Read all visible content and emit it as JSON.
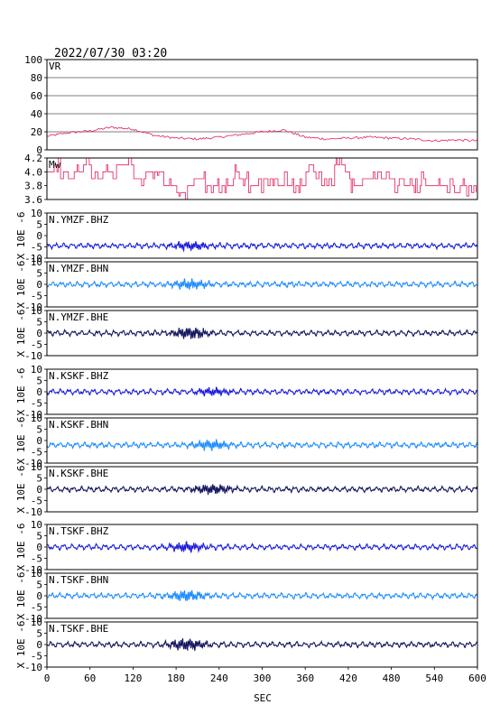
{
  "header": {
    "datetime": "2022/07/30 03:20"
  },
  "colors": {
    "frame": "#000000",
    "vr_line": "#e0205a",
    "mw_line": "#e0205a",
    "bhz": "#1a1adc",
    "bhn": "#1e8cff",
    "bhe": "#141460",
    "grid": "#000000"
  },
  "chart_data": {
    "x_axis": {
      "label": "SEC",
      "ticks": [
        0,
        60,
        120,
        180,
        240,
        300,
        360,
        420,
        480,
        540,
        600
      ],
      "range": [
        0,
        600
      ]
    },
    "panels": [
      {
        "id": "vr",
        "type": "line",
        "title": "VR",
        "ylim": [
          0,
          100
        ],
        "yticks": [
          0,
          20,
          40,
          60,
          80,
          100
        ],
        "grid": true,
        "series": {
          "x": [
            0,
            30,
            60,
            90,
            120,
            150,
            180,
            210,
            240,
            270,
            300,
            330,
            360,
            390,
            420,
            450,
            480,
            510,
            540,
            570,
            600
          ],
          "y": [
            15,
            19,
            21,
            25,
            23,
            16,
            13,
            12,
            14,
            17,
            20,
            22,
            14,
            12,
            13,
            14,
            13,
            12,
            10,
            11,
            10
          ]
        }
      },
      {
        "id": "mw",
        "type": "line",
        "title": "Mw",
        "ylim": [
          3.6,
          4.2
        ],
        "yticks": [
          3.6,
          3.8,
          4.0,
          4.2
        ],
        "grid": false,
        "series": {
          "x": [
            0,
            20,
            40,
            60,
            80,
            100,
            120,
            140,
            160,
            180,
            200,
            220,
            240,
            260,
            280,
            300,
            320,
            340,
            360,
            380,
            400,
            420,
            440,
            460,
            480,
            500,
            520,
            540,
            560,
            580,
            600
          ],
          "y": [
            4.0,
            3.9,
            4.1,
            3.9,
            4.0,
            4.1,
            3.9,
            4.0,
            3.8,
            3.7,
            3.9,
            3.8,
            3.8,
            3.9,
            3.8,
            3.9,
            3.8,
            3.8,
            4.0,
            3.8,
            4.1,
            3.8,
            3.9,
            3.9,
            3.8,
            3.8,
            3.8,
            3.8,
            3.8,
            3.8,
            3.8
          ]
        }
      },
      {
        "id": "ymzf_bhz",
        "type": "line",
        "title": "N.YMZF.BHZ",
        "ylabel": "X 10E -6",
        "ylim": [
          -10,
          10
        ],
        "yticks": [
          -10,
          -5,
          0,
          5,
          10
        ],
        "color_key": "bhz",
        "baseline": -4.5,
        "burst_center": 200,
        "burst_amp": 1.4
      },
      {
        "id": "ymzf_bhn",
        "type": "line",
        "title": "N.YMZF.BHN",
        "ylabel": "X 10E -6",
        "ylim": [
          -10,
          10
        ],
        "yticks": [
          -10,
          -5,
          0,
          5,
          10
        ],
        "color_key": "bhn",
        "baseline": 0,
        "burst_center": 200,
        "burst_amp": 1.6
      },
      {
        "id": "ymzf_bhe",
        "type": "line",
        "title": "N.YMZF.BHE",
        "ylabel": "X 10E -6",
        "ylim": [
          -10,
          10
        ],
        "yticks": [
          -10,
          -5,
          0,
          5,
          10
        ],
        "color_key": "bhe",
        "baseline": 0,
        "burst_center": 200,
        "burst_amp": 2.0
      },
      {
        "id": "kskf_bhz",
        "type": "line",
        "title": "N.KSKF.BHZ",
        "ylabel": "X 10E -6",
        "ylim": [
          -10,
          10
        ],
        "yticks": [
          -10,
          -5,
          0,
          5,
          10
        ],
        "color_key": "bhz",
        "baseline": 0,
        "burst_center": 230,
        "burst_amp": 1.2
      },
      {
        "id": "kskf_bhn",
        "type": "line",
        "title": "N.KSKF.BHN",
        "ylabel": "X 10E -6",
        "ylim": [
          -10,
          10
        ],
        "yticks": [
          -10,
          -5,
          0,
          5,
          10
        ],
        "color_key": "bhn",
        "baseline": -2,
        "burst_center": 230,
        "burst_amp": 1.6
      },
      {
        "id": "kskf_bhe",
        "type": "line",
        "title": "N.KSKF.BHE",
        "ylabel": "X 10E -6",
        "ylim": [
          -10,
          10
        ],
        "yticks": [
          -10,
          -5,
          0,
          5,
          10
        ],
        "color_key": "bhe",
        "baseline": 0,
        "burst_center": 230,
        "burst_amp": 1.8
      },
      {
        "id": "tskf_bhz",
        "type": "line",
        "title": "N.TSKF.BHZ",
        "ylabel": "X 10E -6",
        "ylim": [
          -10,
          10
        ],
        "yticks": [
          -10,
          -5,
          0,
          5,
          10
        ],
        "color_key": "bhz",
        "baseline": 0,
        "burst_center": 195,
        "burst_amp": 1.5
      },
      {
        "id": "tskf_bhn",
        "type": "line",
        "title": "N.TSKF.BHN",
        "ylabel": "X 10E -6",
        "ylim": [
          -10,
          10
        ],
        "yticks": [
          -10,
          -5,
          0,
          5,
          10
        ],
        "color_key": "bhn",
        "baseline": 0,
        "burst_center": 195,
        "burst_amp": 1.8
      },
      {
        "id": "tskf_bhe",
        "type": "line",
        "title": "N.TSKF.BHE",
        "ylabel": "X 10E -6",
        "ylim": [
          -10,
          10
        ],
        "yticks": [
          -10,
          -5,
          0,
          5,
          10
        ],
        "color_key": "bhe",
        "baseline": 0,
        "burst_center": 195,
        "burst_amp": 2.0
      }
    ]
  }
}
